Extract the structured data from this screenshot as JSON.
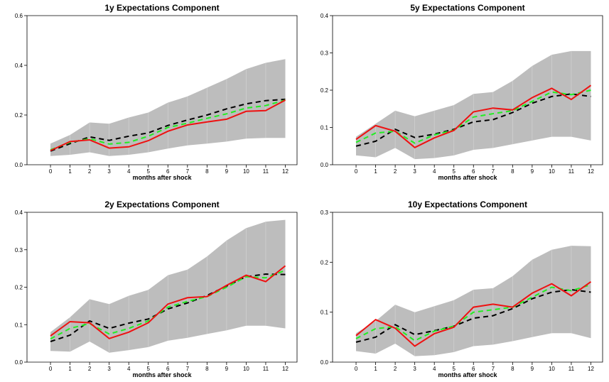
{
  "colors": {
    "band": "#bdbdbd",
    "median": "#000000",
    "mean": "#22ee22",
    "point": "#ee1111"
  },
  "chart_data": [
    {
      "type": "line",
      "title": "1y Expectations Component",
      "xlabel": "months after shock",
      "ylabel": "",
      "x": [
        0,
        1,
        2,
        3,
        4,
        5,
        6,
        7,
        8,
        9,
        10,
        11,
        12
      ],
      "xlim": [
        -1.2,
        12.6
      ],
      "ylim": [
        0,
        0.6
      ],
      "yticks": [
        "0.0",
        "0.2",
        "0.4",
        "0.6"
      ],
      "band_lower": [
        0.035,
        0.04,
        0.05,
        0.035,
        0.04,
        0.05,
        0.065,
        0.078,
        0.085,
        0.093,
        0.105,
        0.108,
        0.108
      ],
      "band_upper": [
        0.085,
        0.12,
        0.17,
        0.165,
        0.19,
        0.21,
        0.25,
        0.275,
        0.31,
        0.345,
        0.385,
        0.41,
        0.425
      ],
      "series": [
        {
          "role": "median",
          "values": [
            0.055,
            0.085,
            0.112,
            0.098,
            0.115,
            0.128,
            0.158,
            0.18,
            0.2,
            0.225,
            0.245,
            0.258,
            0.263
          ]
        },
        {
          "role": "mean",
          "values": [
            0.06,
            0.09,
            0.105,
            0.083,
            0.09,
            0.115,
            0.15,
            0.167,
            0.187,
            0.205,
            0.228,
            0.238,
            0.26
          ]
        },
        {
          "role": "point",
          "values": [
            0.057,
            0.093,
            0.1,
            0.067,
            0.072,
            0.097,
            0.135,
            0.16,
            0.172,
            0.183,
            0.215,
            0.218,
            0.26
          ]
        }
      ]
    },
    {
      "type": "line",
      "title": "5y Expectations Component",
      "xlabel": "months after shock",
      "ylabel": "",
      "x": [
        0,
        1,
        2,
        3,
        4,
        5,
        6,
        7,
        8,
        9,
        10,
        11,
        12
      ],
      "xlim": [
        -1.2,
        12.6
      ],
      "ylim": [
        0,
        0.4
      ],
      "yticks": [
        "0.0",
        "0.1",
        "0.2",
        "0.3",
        "0.4"
      ],
      "band_lower": [
        0.025,
        0.02,
        0.045,
        0.015,
        0.018,
        0.025,
        0.04,
        0.045,
        0.055,
        0.065,
        0.075,
        0.075,
        0.065
      ],
      "band_upper": [
        0.075,
        0.11,
        0.145,
        0.13,
        0.145,
        0.16,
        0.19,
        0.195,
        0.225,
        0.265,
        0.295,
        0.305,
        0.305
      ],
      "series": [
        {
          "role": "median",
          "values": [
            0.05,
            0.063,
            0.095,
            0.073,
            0.082,
            0.095,
            0.115,
            0.121,
            0.14,
            0.165,
            0.183,
            0.19,
            0.183
          ]
        },
        {
          "role": "mean",
          "values": [
            0.06,
            0.085,
            0.09,
            0.058,
            0.08,
            0.093,
            0.128,
            0.137,
            0.145,
            0.17,
            0.195,
            0.188,
            0.2
          ]
        },
        {
          "role": "point",
          "values": [
            0.068,
            0.105,
            0.09,
            0.046,
            0.072,
            0.092,
            0.142,
            0.152,
            0.147,
            0.18,
            0.205,
            0.175,
            0.213
          ]
        }
      ]
    },
    {
      "type": "line",
      "title": "2y Expectations Component",
      "xlabel": "months after shock",
      "ylabel": "",
      "x": [
        0,
        1,
        2,
        3,
        4,
        5,
        6,
        7,
        8,
        9,
        10,
        11,
        12
      ],
      "xlim": [
        -1.2,
        12.6
      ],
      "ylim": [
        0,
        0.4
      ],
      "yticks": [
        "0.0",
        "0.1",
        "0.2",
        "0.3",
        "0.4"
      ],
      "band_lower": [
        0.03,
        0.028,
        0.055,
        0.025,
        0.032,
        0.04,
        0.057,
        0.065,
        0.075,
        0.085,
        0.097,
        0.097,
        0.09
      ],
      "band_upper": [
        0.08,
        0.12,
        0.168,
        0.155,
        0.177,
        0.193,
        0.232,
        0.247,
        0.282,
        0.325,
        0.358,
        0.375,
        0.38
      ],
      "series": [
        {
          "role": "median",
          "values": [
            0.055,
            0.072,
            0.11,
            0.09,
            0.104,
            0.115,
            0.142,
            0.158,
            0.178,
            0.203,
            0.228,
            0.235,
            0.234
          ]
        },
        {
          "role": "mean",
          "values": [
            0.062,
            0.09,
            0.103,
            0.075,
            0.09,
            0.11,
            0.147,
            0.162,
            0.175,
            0.2,
            0.228,
            0.225,
            0.245
          ]
        },
        {
          "role": "point",
          "values": [
            0.07,
            0.108,
            0.105,
            0.063,
            0.08,
            0.105,
            0.155,
            0.172,
            0.175,
            0.205,
            0.232,
            0.215,
            0.257
          ]
        }
      ]
    },
    {
      "type": "line",
      "title": "10y Expectations Component",
      "xlabel": "months after shock",
      "ylabel": "",
      "x": [
        0,
        1,
        2,
        3,
        4,
        5,
        6,
        7,
        8,
        9,
        10,
        11,
        12
      ],
      "xlim": [
        -1.2,
        12.6
      ],
      "ylim": [
        0,
        0.3
      ],
      "yticks": [
        "0.0",
        "0.1",
        "0.2",
        "0.3"
      ],
      "band_lower": [
        0.022,
        0.017,
        0.037,
        0.012,
        0.014,
        0.02,
        0.032,
        0.035,
        0.042,
        0.05,
        0.058,
        0.058,
        0.048
      ],
      "band_upper": [
        0.058,
        0.082,
        0.115,
        0.1,
        0.112,
        0.124,
        0.145,
        0.148,
        0.172,
        0.205,
        0.225,
        0.233,
        0.232
      ],
      "series": [
        {
          "role": "median",
          "values": [
            0.04,
            0.05,
            0.075,
            0.055,
            0.063,
            0.072,
            0.088,
            0.093,
            0.107,
            0.127,
            0.14,
            0.145,
            0.14
          ]
        },
        {
          "role": "mean",
          "values": [
            0.047,
            0.067,
            0.071,
            0.043,
            0.062,
            0.072,
            0.1,
            0.105,
            0.11,
            0.13,
            0.15,
            0.143,
            0.155
          ]
        },
        {
          "role": "point",
          "values": [
            0.053,
            0.085,
            0.068,
            0.032,
            0.057,
            0.07,
            0.11,
            0.116,
            0.11,
            0.138,
            0.157,
            0.133,
            0.161
          ]
        }
      ]
    }
  ]
}
